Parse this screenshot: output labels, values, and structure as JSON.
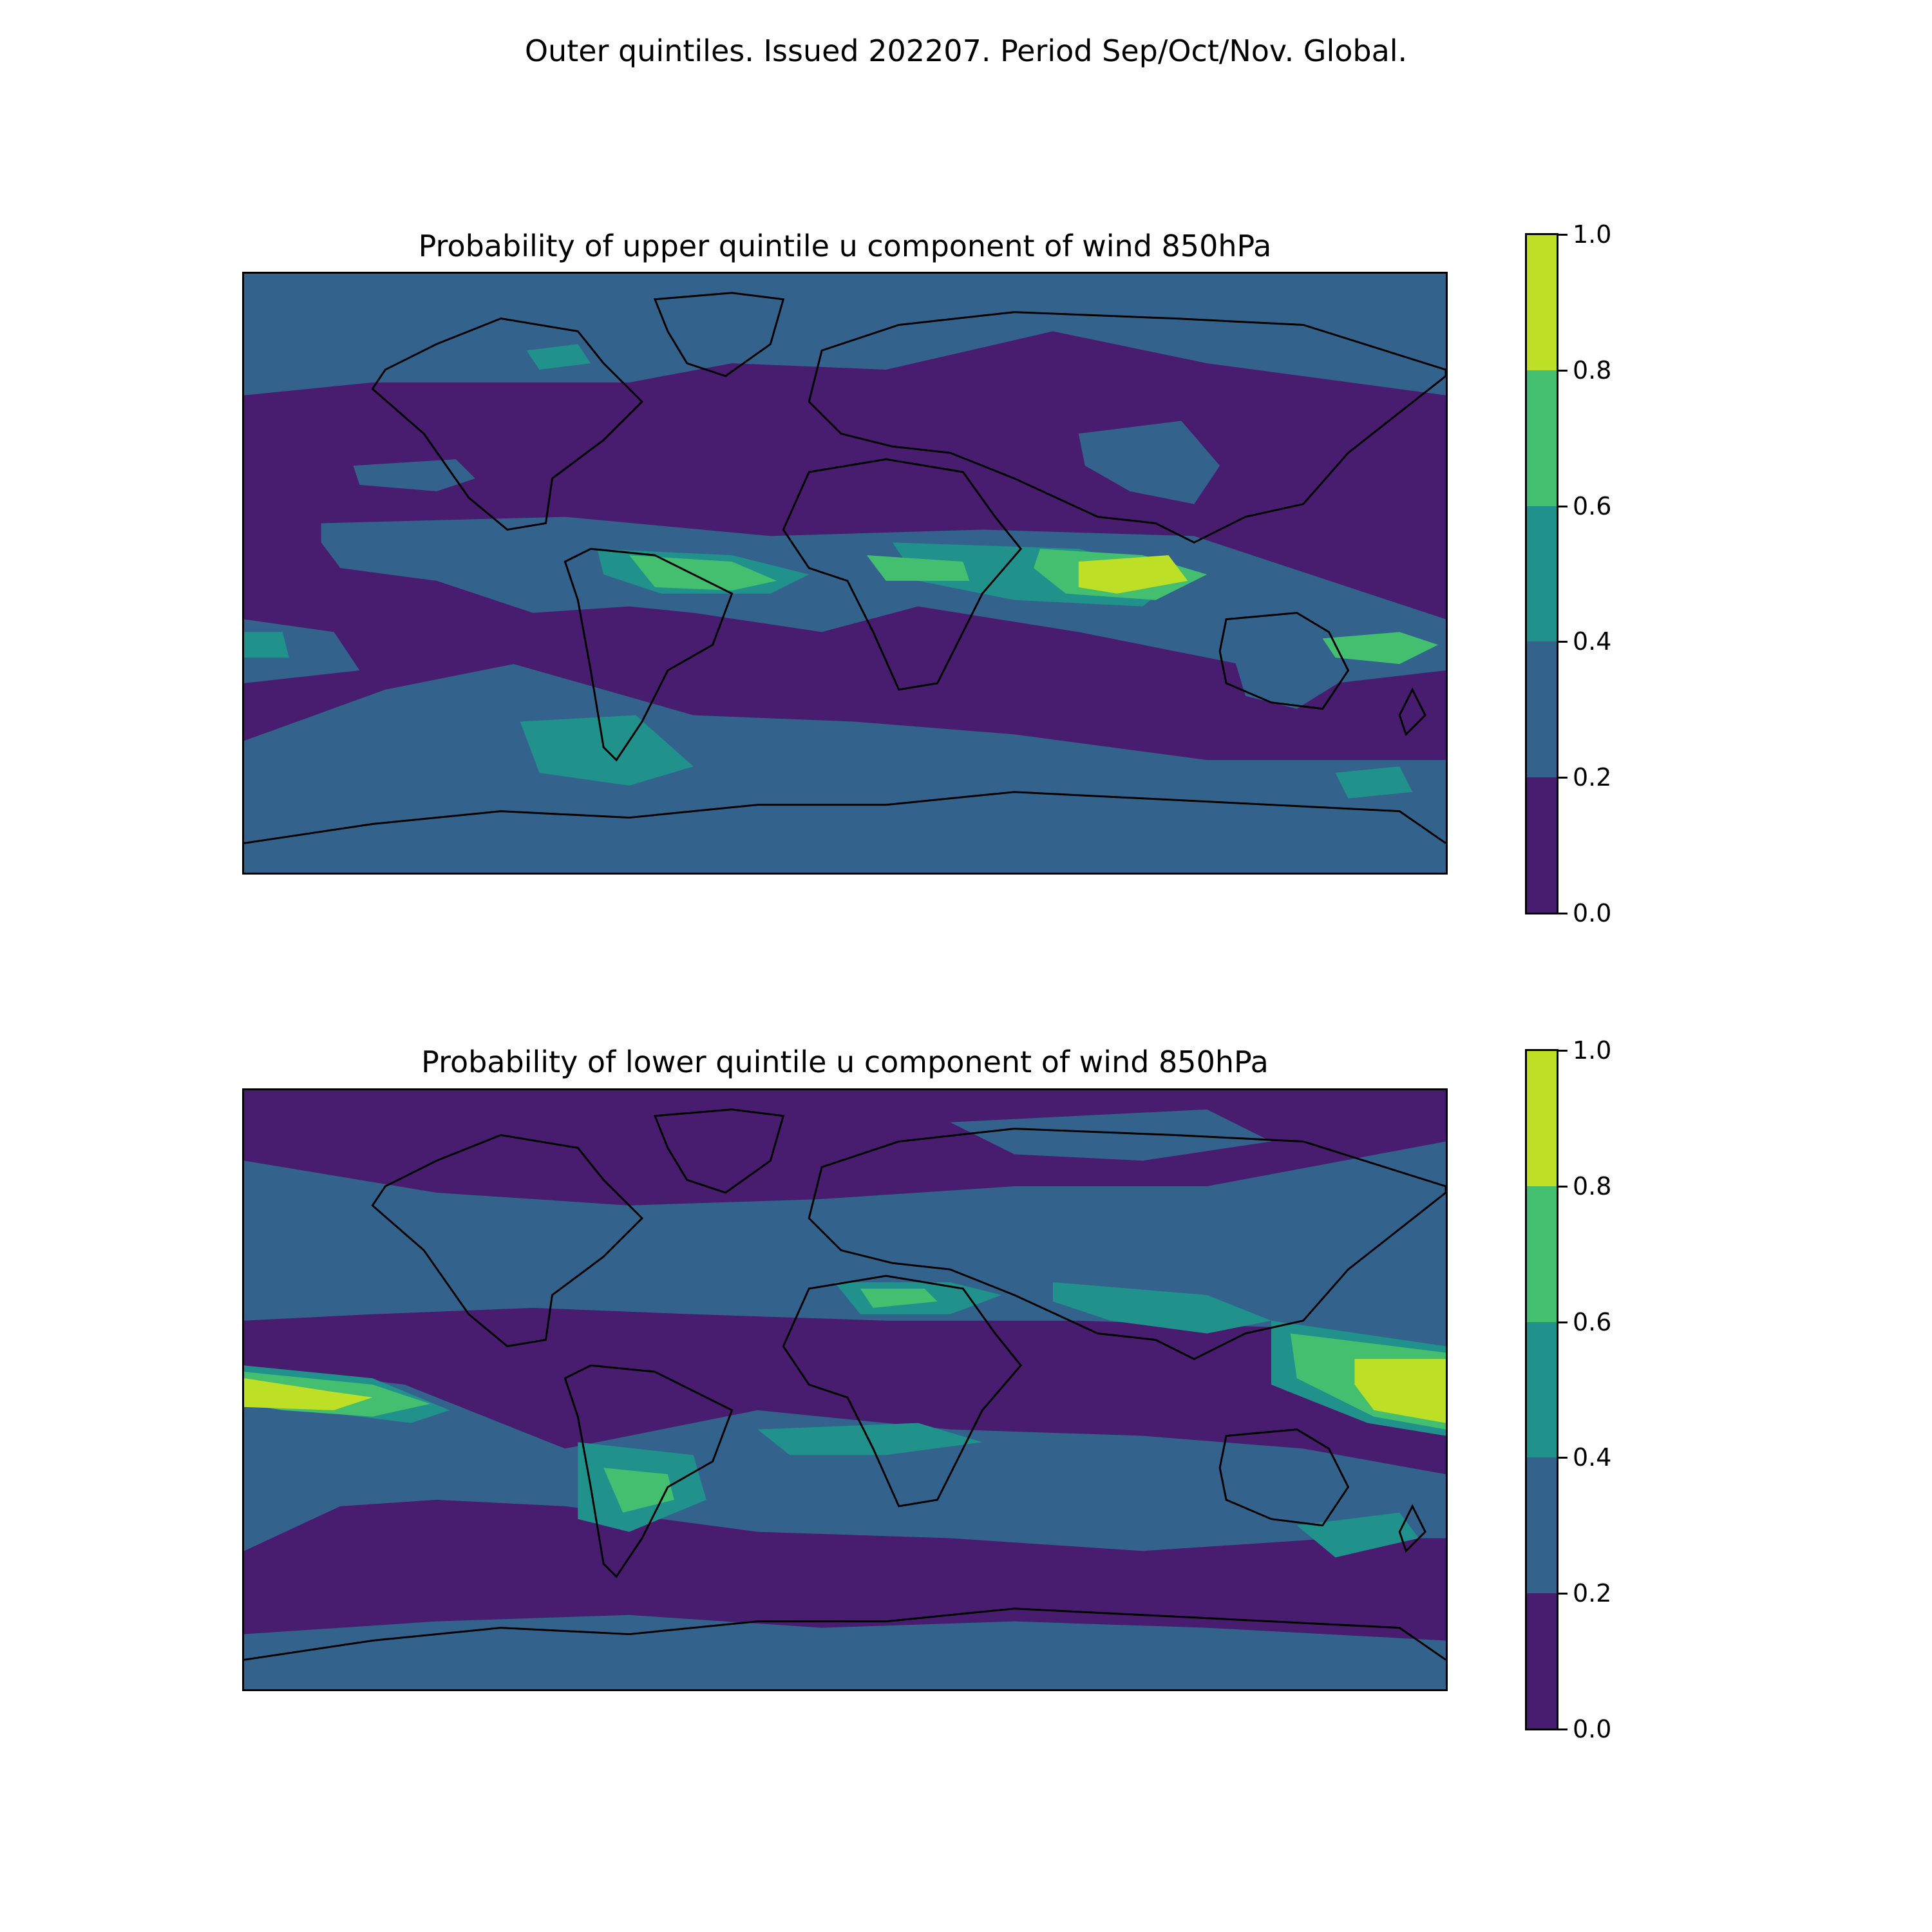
{
  "suptitle": "Outer quintiles. Issued 202207. Period Sep/Oct/Nov. Global.",
  "panels": [
    {
      "title": "Probability of upper quintile u component of wind 850hPa",
      "colorbar": {
        "ticks": [
          "0.0",
          "0.2",
          "0.4",
          "0.6",
          "0.8",
          "1.0"
        ]
      }
    },
    {
      "title": "Probability of lower quintile u component of wind 850hPa",
      "colorbar": {
        "ticks": [
          "0.0",
          "0.2",
          "0.4",
          "0.6",
          "0.8",
          "1.0"
        ]
      }
    }
  ],
  "colors": {
    "level_0_0.2": "#481c6e",
    "level_0.2_0.4": "#33638d",
    "level_0.4_0.6": "#21918c",
    "level_0.6_0.8": "#44bf70",
    "level_0.8_1.0": "#bddf26",
    "coastline": "#000000"
  }
}
